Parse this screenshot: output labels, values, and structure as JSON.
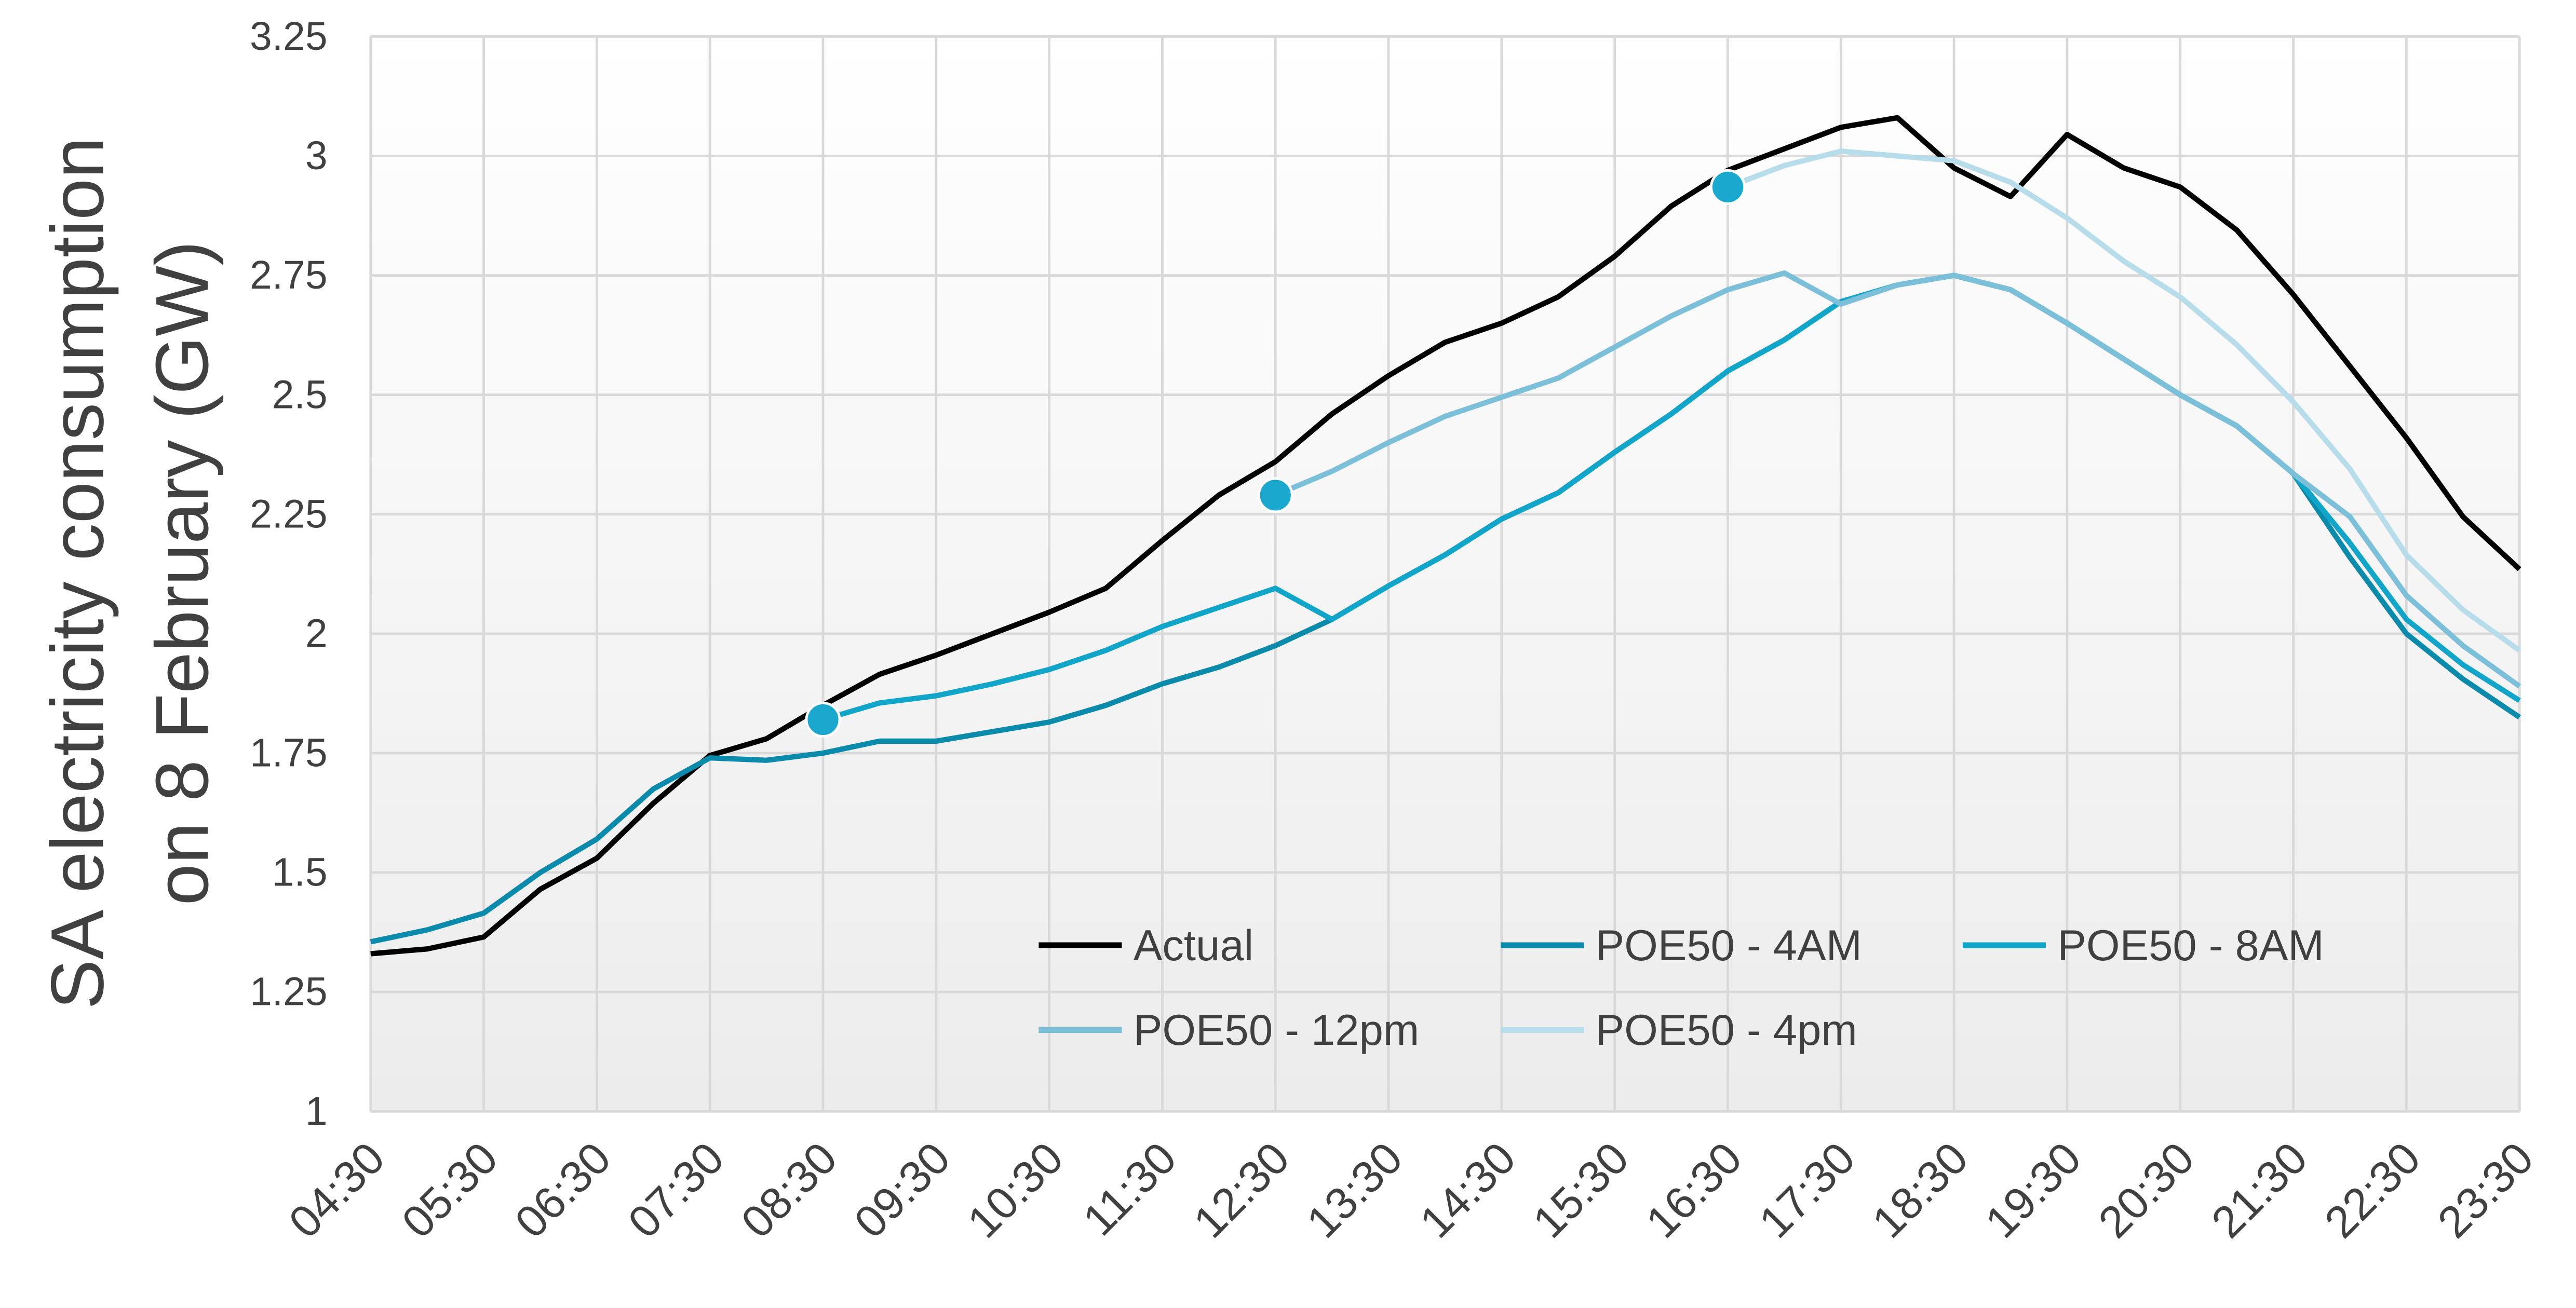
{
  "chart_data": {
    "type": "line",
    "ylabel": [
      "SA electricity consumption",
      "on 8 February (GW)"
    ],
    "categories": [
      "04:30",
      null,
      "05:30",
      null,
      "06:30",
      null,
      "07:30",
      null,
      "08:30",
      null,
      "09:30",
      null,
      "10:30",
      null,
      "11:30",
      null,
      "12:30",
      null,
      "13:30",
      null,
      "14:30",
      null,
      "15:30",
      null,
      "16:30",
      null,
      "17:30",
      null,
      "18:30",
      null,
      "19:30",
      null,
      "20:30",
      null,
      "21:30",
      null,
      "22:30",
      null,
      "23:30"
    ],
    "ylim": [
      1,
      3.25
    ],
    "yticks": [
      1,
      1.25,
      1.5,
      1.75,
      2,
      2.25,
      2.5,
      2.75,
      3,
      3.25
    ],
    "grid": true,
    "marker_color": "#1aa8cf",
    "series": [
      {
        "name": "Actual",
        "color": "#000000",
        "marker": false,
        "values": [
          1.33,
          1.34,
          1.365,
          1.465,
          1.53,
          1.645,
          1.745,
          1.78,
          1.85,
          1.915,
          1.955,
          2.0,
          2.045,
          2.095,
          2.195,
          2.29,
          2.36,
          2.46,
          2.54,
          2.61,
          2.65,
          2.705,
          2.79,
          2.895,
          2.97,
          3.015,
          3.06,
          3.08,
          2.975,
          2.915,
          3.045,
          2.975,
          2.935,
          2.845,
          2.71,
          2.56,
          2.41,
          2.245,
          2.135
        ]
      },
      {
        "name": "POE50 - 4AM",
        "color": "#0b8bab",
        "marker": false,
        "values": [
          1.355,
          1.38,
          1.415,
          1.5,
          1.57,
          1.675,
          1.74,
          1.735,
          1.75,
          1.775,
          1.775,
          1.795,
          1.815,
          1.85,
          1.895,
          1.93,
          1.975,
          2.03,
          2.1,
          2.165,
          2.24,
          2.295,
          2.38,
          2.46,
          2.55,
          2.615,
          2.695,
          2.73,
          2.75,
          2.72,
          2.65,
          2.575,
          2.5,
          2.435,
          2.335,
          2.16,
          2.0,
          1.905,
          1.825
        ]
      },
      {
        "name": "POE50 - 8AM",
        "color": "#11a6c9",
        "marker": true,
        "values": [
          null,
          null,
          null,
          null,
          null,
          null,
          null,
          null,
          1.82,
          1.855,
          1.87,
          1.895,
          1.925,
          1.965,
          2.015,
          2.055,
          2.095,
          2.03,
          2.1,
          2.165,
          2.24,
          2.295,
          2.38,
          2.46,
          2.55,
          2.615,
          2.695,
          2.73,
          2.75,
          2.72,
          2.65,
          2.575,
          2.5,
          2.435,
          2.335,
          2.19,
          2.03,
          1.935,
          1.86
        ]
      },
      {
        "name": "POE50 - 12pm",
        "color": "#7cbfd9",
        "marker": true,
        "values": [
          null,
          null,
          null,
          null,
          null,
          null,
          null,
          null,
          null,
          null,
          null,
          null,
          null,
          null,
          null,
          null,
          2.29,
          2.34,
          2.4,
          2.455,
          2.495,
          2.535,
          2.6,
          2.665,
          2.72,
          2.755,
          2.69,
          2.73,
          2.75,
          2.72,
          2.65,
          2.575,
          2.5,
          2.435,
          2.335,
          2.245,
          2.08,
          1.975,
          1.89
        ]
      },
      {
        "name": "POE50 - 4pm",
        "color": "#b7dcea",
        "marker": true,
        "values": [
          null,
          null,
          null,
          null,
          null,
          null,
          null,
          null,
          null,
          null,
          null,
          null,
          null,
          null,
          null,
          null,
          null,
          null,
          null,
          null,
          null,
          null,
          null,
          null,
          2.935,
          2.98,
          3.01,
          3.0,
          2.99,
          2.945,
          2.87,
          2.78,
          2.705,
          2.605,
          2.485,
          2.345,
          2.165,
          2.05,
          1.965
        ]
      }
    ]
  }
}
